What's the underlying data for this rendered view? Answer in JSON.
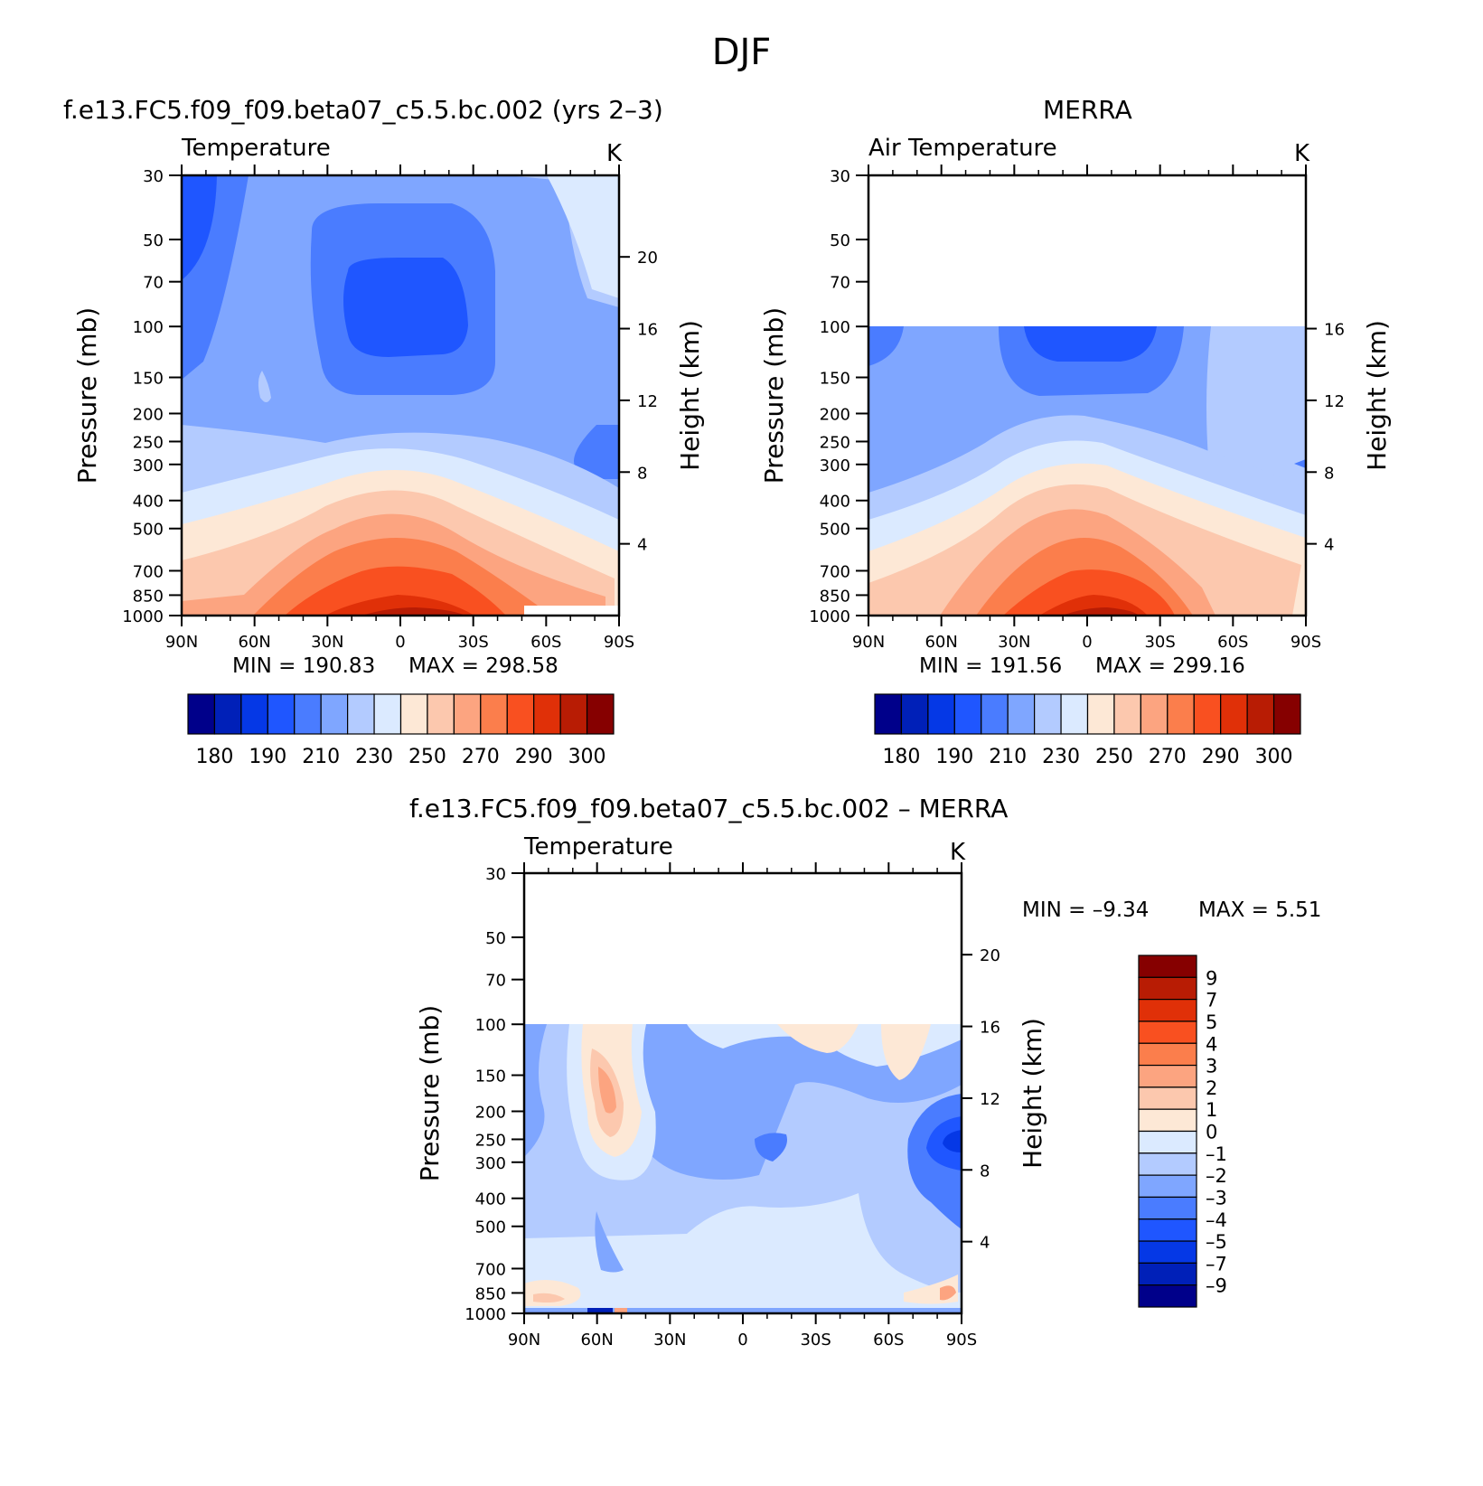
{
  "figure": {
    "title": "DJF",
    "lat_ticks": [
      "90N",
      "60N",
      "30N",
      "0",
      "30S",
      "60S",
      "90S"
    ],
    "pressure_ticks": [
      30,
      50,
      70,
      100,
      150,
      200,
      250,
      300,
      400,
      500,
      700,
      850,
      1000
    ],
    "pressure_axis_label": "Pressure  (mb)",
    "height_axis_label": "Height  (km)"
  },
  "panels": {
    "model": {
      "title": "f.e13.FC5.f09_f09.beta07_c5.5.bc.002 (yrs 2–3)",
      "subtitle": "Temperature",
      "units": "K",
      "min_label": "MIN  =  190.83",
      "max_label": "MAX  =  298.58",
      "height_ticks": [
        20,
        16,
        12,
        8,
        4
      ]
    },
    "merra": {
      "title": "MERRA",
      "subtitle": "Air Temperature",
      "units": "K",
      "min_label": "MIN  =  191.56",
      "max_label": "MAX  =  299.16",
      "height_ticks": [
        16,
        12,
        8,
        4
      ]
    },
    "diff": {
      "title": "f.e13.FC5.f09_f09.beta07_c5.5.bc.002  –  MERRA",
      "subtitle": "Temperature",
      "units": "K",
      "min_label": "MIN  =    –9.34",
      "max_label": "MAX  =     5.51",
      "height_ticks": [
        20,
        16,
        12,
        8,
        4
      ]
    }
  },
  "colorbars": {
    "temperature": {
      "labels": [
        "180",
        "190",
        "210",
        "230",
        "250",
        "270",
        "290",
        "300"
      ],
      "colors": [
        "#00008a",
        "#0020b8",
        "#0538e6",
        "#1f56ff",
        "#4a7cff",
        "#7fa6ff",
        "#b3cbff",
        "#dbeaff",
        "#fde8d6",
        "#fcc8ae",
        "#fca480",
        "#fb7e4c",
        "#f95020",
        "#e03008",
        "#b81c04",
        "#860000"
      ]
    },
    "difference": {
      "labels": [
        "9",
        "7",
        "5",
        "4",
        "3",
        "2",
        "1",
        "0",
        "–1",
        "–2",
        "–3",
        "–4",
        "–5",
        "–7",
        "–9"
      ],
      "colors": [
        "#860000",
        "#b81c04",
        "#e03008",
        "#f95020",
        "#fb7e4c",
        "#fca480",
        "#fcc8ae",
        "#fde8d6",
        "#dbeaff",
        "#b3cbff",
        "#7fa6ff",
        "#4a7cff",
        "#1f56ff",
        "#0538e6",
        "#0020b8",
        "#00008a"
      ]
    }
  },
  "chart_data": [
    {
      "type": "heatmap",
      "title": "f.e13.FC5.f09_f09.beta07_c5.5.bc.002 (yrs 2–3)",
      "subtitle": "Temperature",
      "units": "K",
      "xlabel": "",
      "ylabel": "Pressure  (mb)",
      "y2label": "Height  (km)",
      "x_categories": [
        "90N",
        "60N",
        "30N",
        "0",
        "30S",
        "60S",
        "90S"
      ],
      "y_pressure_mb": [
        30,
        50,
        70,
        100,
        150,
        200,
        250,
        300,
        400,
        500,
        700,
        850,
        1000
      ],
      "min": 190.83,
      "max": 298.58,
      "contour_levels": [
        180,
        185,
        190,
        200,
        210,
        220,
        230,
        240,
        250,
        260,
        270,
        280,
        290,
        295,
        300
      ]
    },
    {
      "type": "heatmap",
      "title": "MERRA",
      "subtitle": "Air Temperature",
      "units": "K",
      "xlabel": "",
      "ylabel": "Pressure  (mb)",
      "y2label": "Height  (km)",
      "x_categories": [
        "90N",
        "60N",
        "30N",
        "0",
        "30S",
        "60S",
        "90S"
      ],
      "y_pressure_mb": [
        30,
        50,
        70,
        100,
        150,
        200,
        250,
        300,
        400,
        500,
        700,
        850,
        1000
      ],
      "data_top_mb": 100,
      "min": 191.56,
      "max": 299.16,
      "contour_levels": [
        180,
        185,
        190,
        200,
        210,
        220,
        230,
        240,
        250,
        260,
        270,
        280,
        290,
        295,
        300
      ]
    },
    {
      "type": "heatmap",
      "title": "f.e13.FC5.f09_f09.beta07_c5.5.bc.002  –  MERRA",
      "subtitle": "Temperature",
      "units": "K",
      "xlabel": "",
      "ylabel": "Pressure  (mb)",
      "y2label": "Height  (km)",
      "x_categories": [
        "90N",
        "60N",
        "30N",
        "0",
        "30S",
        "60S",
        "90S"
      ],
      "y_pressure_mb": [
        30,
        50,
        70,
        100,
        150,
        200,
        250,
        300,
        400,
        500,
        700,
        850,
        1000
      ],
      "data_top_mb": 100,
      "min": -9.34,
      "max": 5.51,
      "contour_levels": [
        -9,
        -7,
        -5,
        -4,
        -3,
        -2,
        -1,
        0,
        1,
        2,
        3,
        4,
        5,
        7,
        9
      ]
    }
  ]
}
